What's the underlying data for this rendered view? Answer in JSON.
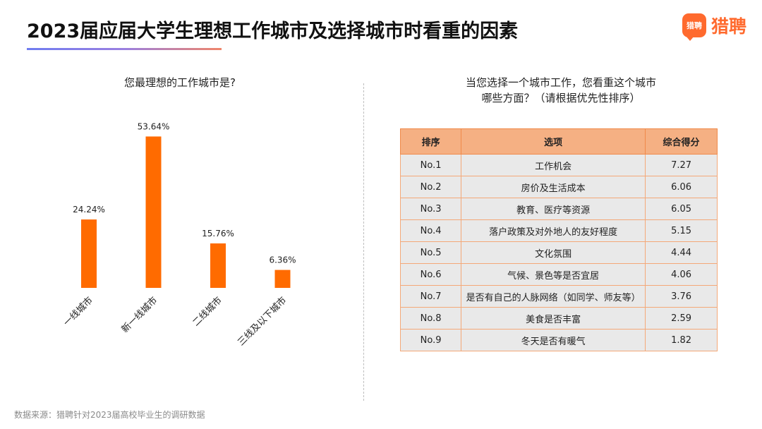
{
  "header": {
    "title": "2023届应届大学生理想工作城市及选择城市时看重的因素",
    "logo_mark": "猎聘",
    "logo_text": "猎聘"
  },
  "left_question": "您最理想的工作城市是?",
  "right_question": {
    "line1": "当您选择一个城市工作，您看重这个城市",
    "line2": "哪些方面？（请根据优先性排序）"
  },
  "chart_data": {
    "type": "bar",
    "categories": [
      "一线城市",
      "新一线城市",
      "二线城市",
      "三线及以下城市"
    ],
    "values": [
      24.24,
      53.64,
      15.76,
      6.36
    ],
    "value_labels": [
      "24.24%",
      "53.64%",
      "15.76%",
      "6.36%"
    ],
    "unit": "%",
    "ylim": [
      0,
      60
    ],
    "bar_color": "#ff6b00",
    "grid": false,
    "legend": "none"
  },
  "table": {
    "headers": [
      "排序",
      "选项",
      "综合得分"
    ],
    "rows": [
      [
        "No.1",
        "工作机会",
        "7.27"
      ],
      [
        "No.2",
        "房价及生活成本",
        "6.06"
      ],
      [
        "No.3",
        "教育、医疗等资源",
        "6.05"
      ],
      [
        "No.4",
        "落户政策及对外地人的友好程度",
        "5.15"
      ],
      [
        "No.5",
        "文化氛围",
        "4.44"
      ],
      [
        "No.6",
        "气候、景色等是否宜居",
        "4.06"
      ],
      [
        "No.7",
        "是否有自己的人脉网络（如同学、师友等）",
        "3.76"
      ],
      [
        "No.8",
        "美食是否丰富",
        "2.59"
      ],
      [
        "No.9",
        "冬天是否有暖气",
        "1.82"
      ]
    ]
  },
  "source": "数据来源：猎聘针对2023届高校毕业生的调研数据",
  "colors": {
    "accent": "#ff6a2e",
    "table_header": "#f5b083",
    "table_cell": "#e9e9e9",
    "table_border": "#f4a878"
  }
}
